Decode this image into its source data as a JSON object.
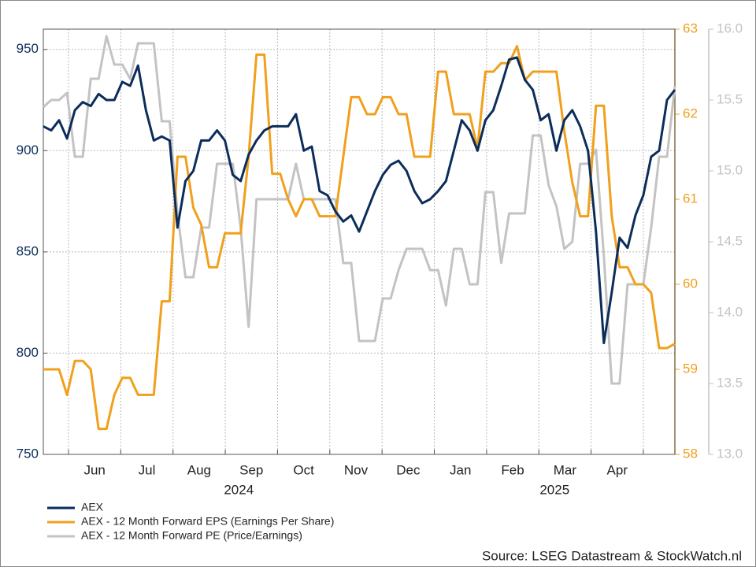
{
  "chart_data": {
    "type": "line",
    "x_axis": {
      "months": [
        "Jun",
        "Jul",
        "Aug",
        "Sep",
        "Oct",
        "Nov",
        "Dec",
        "Jan",
        "Feb",
        "Mar",
        "Apr"
      ],
      "years": [
        "2024",
        "2025"
      ]
    },
    "ylim": [
      750,
      960
    ],
    "yticks": [
      750,
      800,
      850,
      900,
      950
    ],
    "y2lim": [
      58,
      63
    ],
    "y2ticks": [
      58,
      59,
      60,
      61,
      62,
      63
    ],
    "y3lim": [
      13,
      16
    ],
    "y3ticks": [
      {
        "value": 13,
        "label": "13.0"
      },
      13.5,
      {
        "value": 14,
        "label": "14.0"
      },
      14.5,
      {
        "value": 15,
        "label": "15.0"
      },
      15.5,
      {
        "value": 16,
        "label": "16.0"
      }
    ],
    "grid": true,
    "source": "Source: LSEG Datastream & StockWatch.nl",
    "series": [
      {
        "name": "AEX",
        "color": "#0b2d5b",
        "axis": "y",
        "values": [
          912,
          910,
          915,
          906,
          920,
          924,
          922,
          928,
          925,
          925,
          934,
          932,
          942,
          920,
          905,
          907,
          905,
          862,
          885,
          890,
          905,
          905,
          910,
          905,
          888,
          885,
          898,
          905,
          910,
          912,
          912,
          912,
          918,
          900,
          902,
          880,
          878,
          870,
          865,
          868,
          860,
          870,
          880,
          888,
          893,
          895,
          890,
          880,
          874,
          876,
          880,
          885,
          900,
          915,
          910,
          900,
          915,
          920,
          932,
          945,
          946,
          935,
          930,
          915,
          918,
          900,
          915,
          920,
          912,
          900,
          860,
          805,
          830,
          857,
          852,
          868,
          878,
          897,
          900,
          925,
          930
        ]
      },
      {
        "name": "AEX - 12 Month Forward EPS (Earnings Per Share)",
        "color": "#f0a01c",
        "axis": "y2",
        "values": [
          59.0,
          59.0,
          59.0,
          58.7,
          59.1,
          59.1,
          59.0,
          58.3,
          58.3,
          58.7,
          58.9,
          58.9,
          58.7,
          58.7,
          58.7,
          59.8,
          59.8,
          61.5,
          61.5,
          60.9,
          60.7,
          60.2,
          60.2,
          60.6,
          60.6,
          60.6,
          61.5,
          62.7,
          62.7,
          61.3,
          61.3,
          61.0,
          60.8,
          61.0,
          61.0,
          60.8,
          60.8,
          60.8,
          61.5,
          62.2,
          62.2,
          62.0,
          62.0,
          62.2,
          62.2,
          62.0,
          62.0,
          61.5,
          61.5,
          61.5,
          62.5,
          62.5,
          62.0,
          62.0,
          62.0,
          61.6,
          62.5,
          62.5,
          62.6,
          62.6,
          62.8,
          62.4,
          62.5,
          62.5,
          62.5,
          62.5,
          61.8,
          61.2,
          60.8,
          60.8,
          62.1,
          62.1,
          60.8,
          60.2,
          60.2,
          60.0,
          60.0,
          59.9,
          59.25,
          59.25,
          59.3
        ]
      },
      {
        "name": "AEX - 12 Month Forward PE (Price/Earnings)",
        "color": "#c3c3c3",
        "axis": "y3",
        "values": [
          15.45,
          15.5,
          15.5,
          15.55,
          15.1,
          15.1,
          15.65,
          15.65,
          15.95,
          15.75,
          15.75,
          15.65,
          15.9,
          15.9,
          15.9,
          15.35,
          15.35,
          14.7,
          14.25,
          14.25,
          14.6,
          14.6,
          15.05,
          15.05,
          15.05,
          14.6,
          13.9,
          14.8,
          14.8,
          14.8,
          14.8,
          14.8,
          15.05,
          14.8,
          14.8,
          14.8,
          14.8,
          14.8,
          14.35,
          14.35,
          13.8,
          13.8,
          13.8,
          14.1,
          14.1,
          14.3,
          14.45,
          14.45,
          14.45,
          14.3,
          14.3,
          14.05,
          14.45,
          14.45,
          14.2,
          14.2,
          14.85,
          14.85,
          14.35,
          14.7,
          14.7,
          14.7,
          15.25,
          15.25,
          14.9,
          14.75,
          14.45,
          14.5,
          15.05,
          15.05,
          15.15,
          14.4,
          13.5,
          13.5,
          14.2,
          14.2,
          14.2,
          14.6,
          15.1,
          15.1,
          15.6
        ]
      }
    ]
  }
}
